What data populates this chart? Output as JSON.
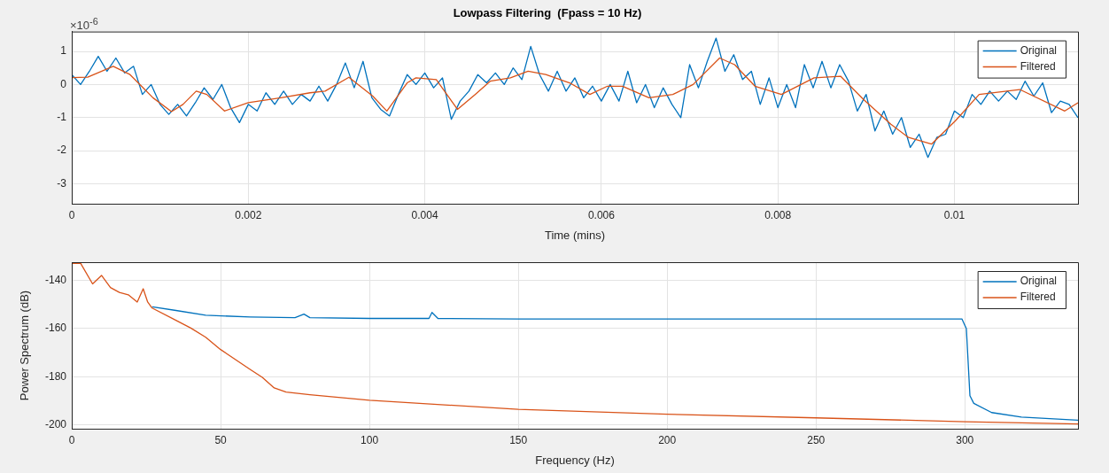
{
  "chart_data": [
    {
      "type": "line",
      "title": "Lowpass Filtering  (Fpass = 10 Hz)",
      "xlabel": "Time (mins)",
      "annotations": [
        "×10$^{-6}$"
      ],
      "xlim": [
        0,
        0.0114
      ],
      "xticks": [
        0,
        0.002,
        0.004,
        0.006,
        0.008,
        0.01
      ],
      "ylim": [
        -3.6,
        1.6
      ],
      "yticks": [
        -3,
        -2,
        -1,
        0,
        1
      ],
      "grid": true,
      "legend": "top right",
      "marker": "none",
      "line_style": "solid",
      "series": [
        {
          "name": "Original",
          "color": "#0072bd",
          "x": [
            0,
            0.0001,
            0.0002,
            0.0003,
            0.0004,
            0.0005,
            0.0006,
            0.0007,
            0.0008,
            0.0009,
            0.001,
            0.0011,
            0.0012,
            0.0013,
            0.0014,
            0.0015,
            0.0016,
            0.0017,
            0.0018,
            0.0019,
            0.002,
            0.0021,
            0.0022,
            0.0023,
            0.0024,
            0.0025,
            0.0026,
            0.0027,
            0.0028,
            0.0029,
            0.003,
            0.0031,
            0.0032,
            0.0033,
            0.0034,
            0.0035,
            0.0036,
            0.0037,
            0.0038,
            0.0039,
            0.004,
            0.0041,
            0.0042,
            0.0043,
            0.0044,
            0.0045,
            0.0046,
            0.0047,
            0.0048,
            0.0049,
            0.005,
            0.0051,
            0.0052,
            0.0053,
            0.0054,
            0.0055,
            0.0056,
            0.0057,
            0.0058,
            0.0059,
            0.006,
            0.0061,
            0.0062,
            0.0063,
            0.0064,
            0.0065,
            0.0066,
            0.0067,
            0.0068,
            0.0069,
            0.007,
            0.0071,
            0.0072,
            0.0073,
            0.0074,
            0.0075,
            0.0076,
            0.0077,
            0.0078,
            0.0079,
            0.008,
            0.0081,
            0.0082,
            0.0083,
            0.0084,
            0.0085,
            0.0086,
            0.0087,
            0.0088,
            0.0089,
            0.009,
            0.0091,
            0.0092,
            0.0093,
            0.0094,
            0.0095,
            0.0096,
            0.0097,
            0.0098,
            0.0099,
            0.01,
            0.0101,
            0.0102,
            0.0103,
            0.0104,
            0.0105,
            0.0106,
            0.0107,
            0.0108,
            0.0109,
            0.011,
            0.0111,
            0.0112,
            0.0113,
            0.0114
          ],
          "values": [
            0.3,
            0.0,
            0.4,
            0.85,
            0.4,
            0.8,
            0.35,
            0.55,
            -0.3,
            0.0,
            -0.6,
            -0.9,
            -0.6,
            -0.95,
            -0.55,
            -0.1,
            -0.45,
            0.0,
            -0.7,
            -1.15,
            -0.6,
            -0.8,
            -0.25,
            -0.6,
            -0.2,
            -0.6,
            -0.3,
            -0.5,
            -0.05,
            -0.5,
            0.0,
            0.65,
            -0.1,
            0.7,
            -0.4,
            -0.75,
            -0.95,
            -0.3,
            0.3,
            0.0,
            0.35,
            -0.1,
            0.2,
            -1.05,
            -0.5,
            -0.2,
            0.3,
            0.05,
            0.35,
            0.0,
            0.5,
            0.15,
            1.15,
            0.3,
            -0.2,
            0.4,
            -0.2,
            0.2,
            -0.4,
            -0.05,
            -0.5,
            0.0,
            -0.5,
            0.4,
            -0.55,
            0.0,
            -0.7,
            -0.1,
            -0.6,
            -1.0,
            0.6,
            -0.1,
            0.7,
            1.4,
            0.4,
            0.9,
            0.15,
            0.4,
            -0.6,
            0.2,
            -0.7,
            0.0,
            -0.7,
            0.6,
            -0.1,
            0.7,
            -0.1,
            0.6,
            0.1,
            -0.8,
            -0.3,
            -1.4,
            -0.8,
            -1.5,
            -1.0,
            -1.9,
            -1.5,
            -2.2,
            -1.6,
            -1.5,
            -0.8,
            -1.0,
            -0.3,
            -0.6,
            -0.2,
            -0.5,
            -0.2,
            -0.45,
            0.1,
            -0.35,
            0.05,
            -0.85,
            -0.5,
            -0.6,
            -1.0
          ]
        },
        {
          "name": "Filtered",
          "color": "#d95319",
          "x": [
            0,
            0.00018,
            0.00047,
            0.00066,
            0.00079,
            0.00092,
            0.00113,
            0.00126,
            0.00141,
            0.00153,
            0.00173,
            0.002,
            0.00237,
            0.0027,
            0.00287,
            0.00314,
            0.00341,
            0.00357,
            0.0038,
            0.0039,
            0.00413,
            0.00437,
            0.00457,
            0.00474,
            0.00497,
            0.00517,
            0.00537,
            0.00564,
            0.00587,
            0.00607,
            0.00624,
            0.00654,
            0.00681,
            0.00704,
            0.00734,
            0.00751,
            0.00774,
            0.00804,
            0.00841,
            0.00871,
            0.00897,
            0.00928,
            0.00948,
            0.00974,
            0.01001,
            0.01028,
            0.01074,
            0.01125,
            0.0114
          ],
          "values": [
            0.21,
            0.22,
            0.55,
            0.3,
            -0.05,
            -0.4,
            -0.82,
            -0.6,
            -0.2,
            -0.3,
            -0.8,
            -0.55,
            -0.4,
            -0.25,
            -0.2,
            0.22,
            -0.35,
            -0.8,
            0.05,
            0.2,
            0.15,
            -0.75,
            -0.3,
            0.1,
            0.2,
            0.4,
            0.3,
            0.05,
            -0.3,
            -0.05,
            -0.05,
            -0.4,
            -0.3,
            0.0,
            0.8,
            0.6,
            -0.05,
            -0.3,
            0.2,
            0.25,
            -0.45,
            -1.2,
            -1.6,
            -1.8,
            -1.1,
            -0.3,
            -0.15,
            -0.8,
            -0.55
          ]
        }
      ]
    },
    {
      "type": "line",
      "xlabel": "Frequency (Hz)",
      "ylabel": "Power Spectrum (dB)",
      "xlim": [
        0,
        338
      ],
      "xticks": [
        0,
        50,
        100,
        150,
        200,
        250,
        300
      ],
      "ylim": [
        -201.5,
        -132.5
      ],
      "yticks": [
        -200,
        -180,
        -160,
        -140
      ],
      "grid": true,
      "legend": "top right",
      "marker": "none",
      "line_style": "solid",
      "series": [
        {
          "name": "Original",
          "color": "#0072bd",
          "x": [
            27,
            35,
            45,
            60,
            75,
            78,
            80,
            100,
            120,
            121,
            123,
            150,
            200,
            250,
            299,
            300.5,
            301.7,
            303,
            309,
            319,
            338
          ],
          "values": [
            -151,
            -152.5,
            -154.5,
            -155.2,
            -155.5,
            -154,
            -155.5,
            -155.8,
            -155.8,
            -153.3,
            -155.8,
            -156,
            -156,
            -156,
            -156,
            -160,
            -187.8,
            -191,
            -194.8,
            -196.7,
            -198
          ]
        },
        {
          "name": "Filtered",
          "color": "#d95319",
          "x": [
            0,
            3,
            7,
            10,
            13,
            16,
            19,
            22,
            24,
            25.5,
            27,
            35,
            40,
            45,
            50,
            60,
            64,
            68,
            72,
            80,
            100,
            150,
            200,
            250,
            300,
            338
          ],
          "values": [
            -133,
            -133,
            -141.5,
            -138,
            -143,
            -145,
            -146,
            -149,
            -143.5,
            -149,
            -151.5,
            -156.6,
            -159.8,
            -163.6,
            -168.7,
            -177,
            -180.2,
            -184.6,
            -186.3,
            -187.4,
            -189.7,
            -193.5,
            -195.5,
            -197,
            -198.6,
            -199.5
          ]
        }
      ]
    }
  ]
}
